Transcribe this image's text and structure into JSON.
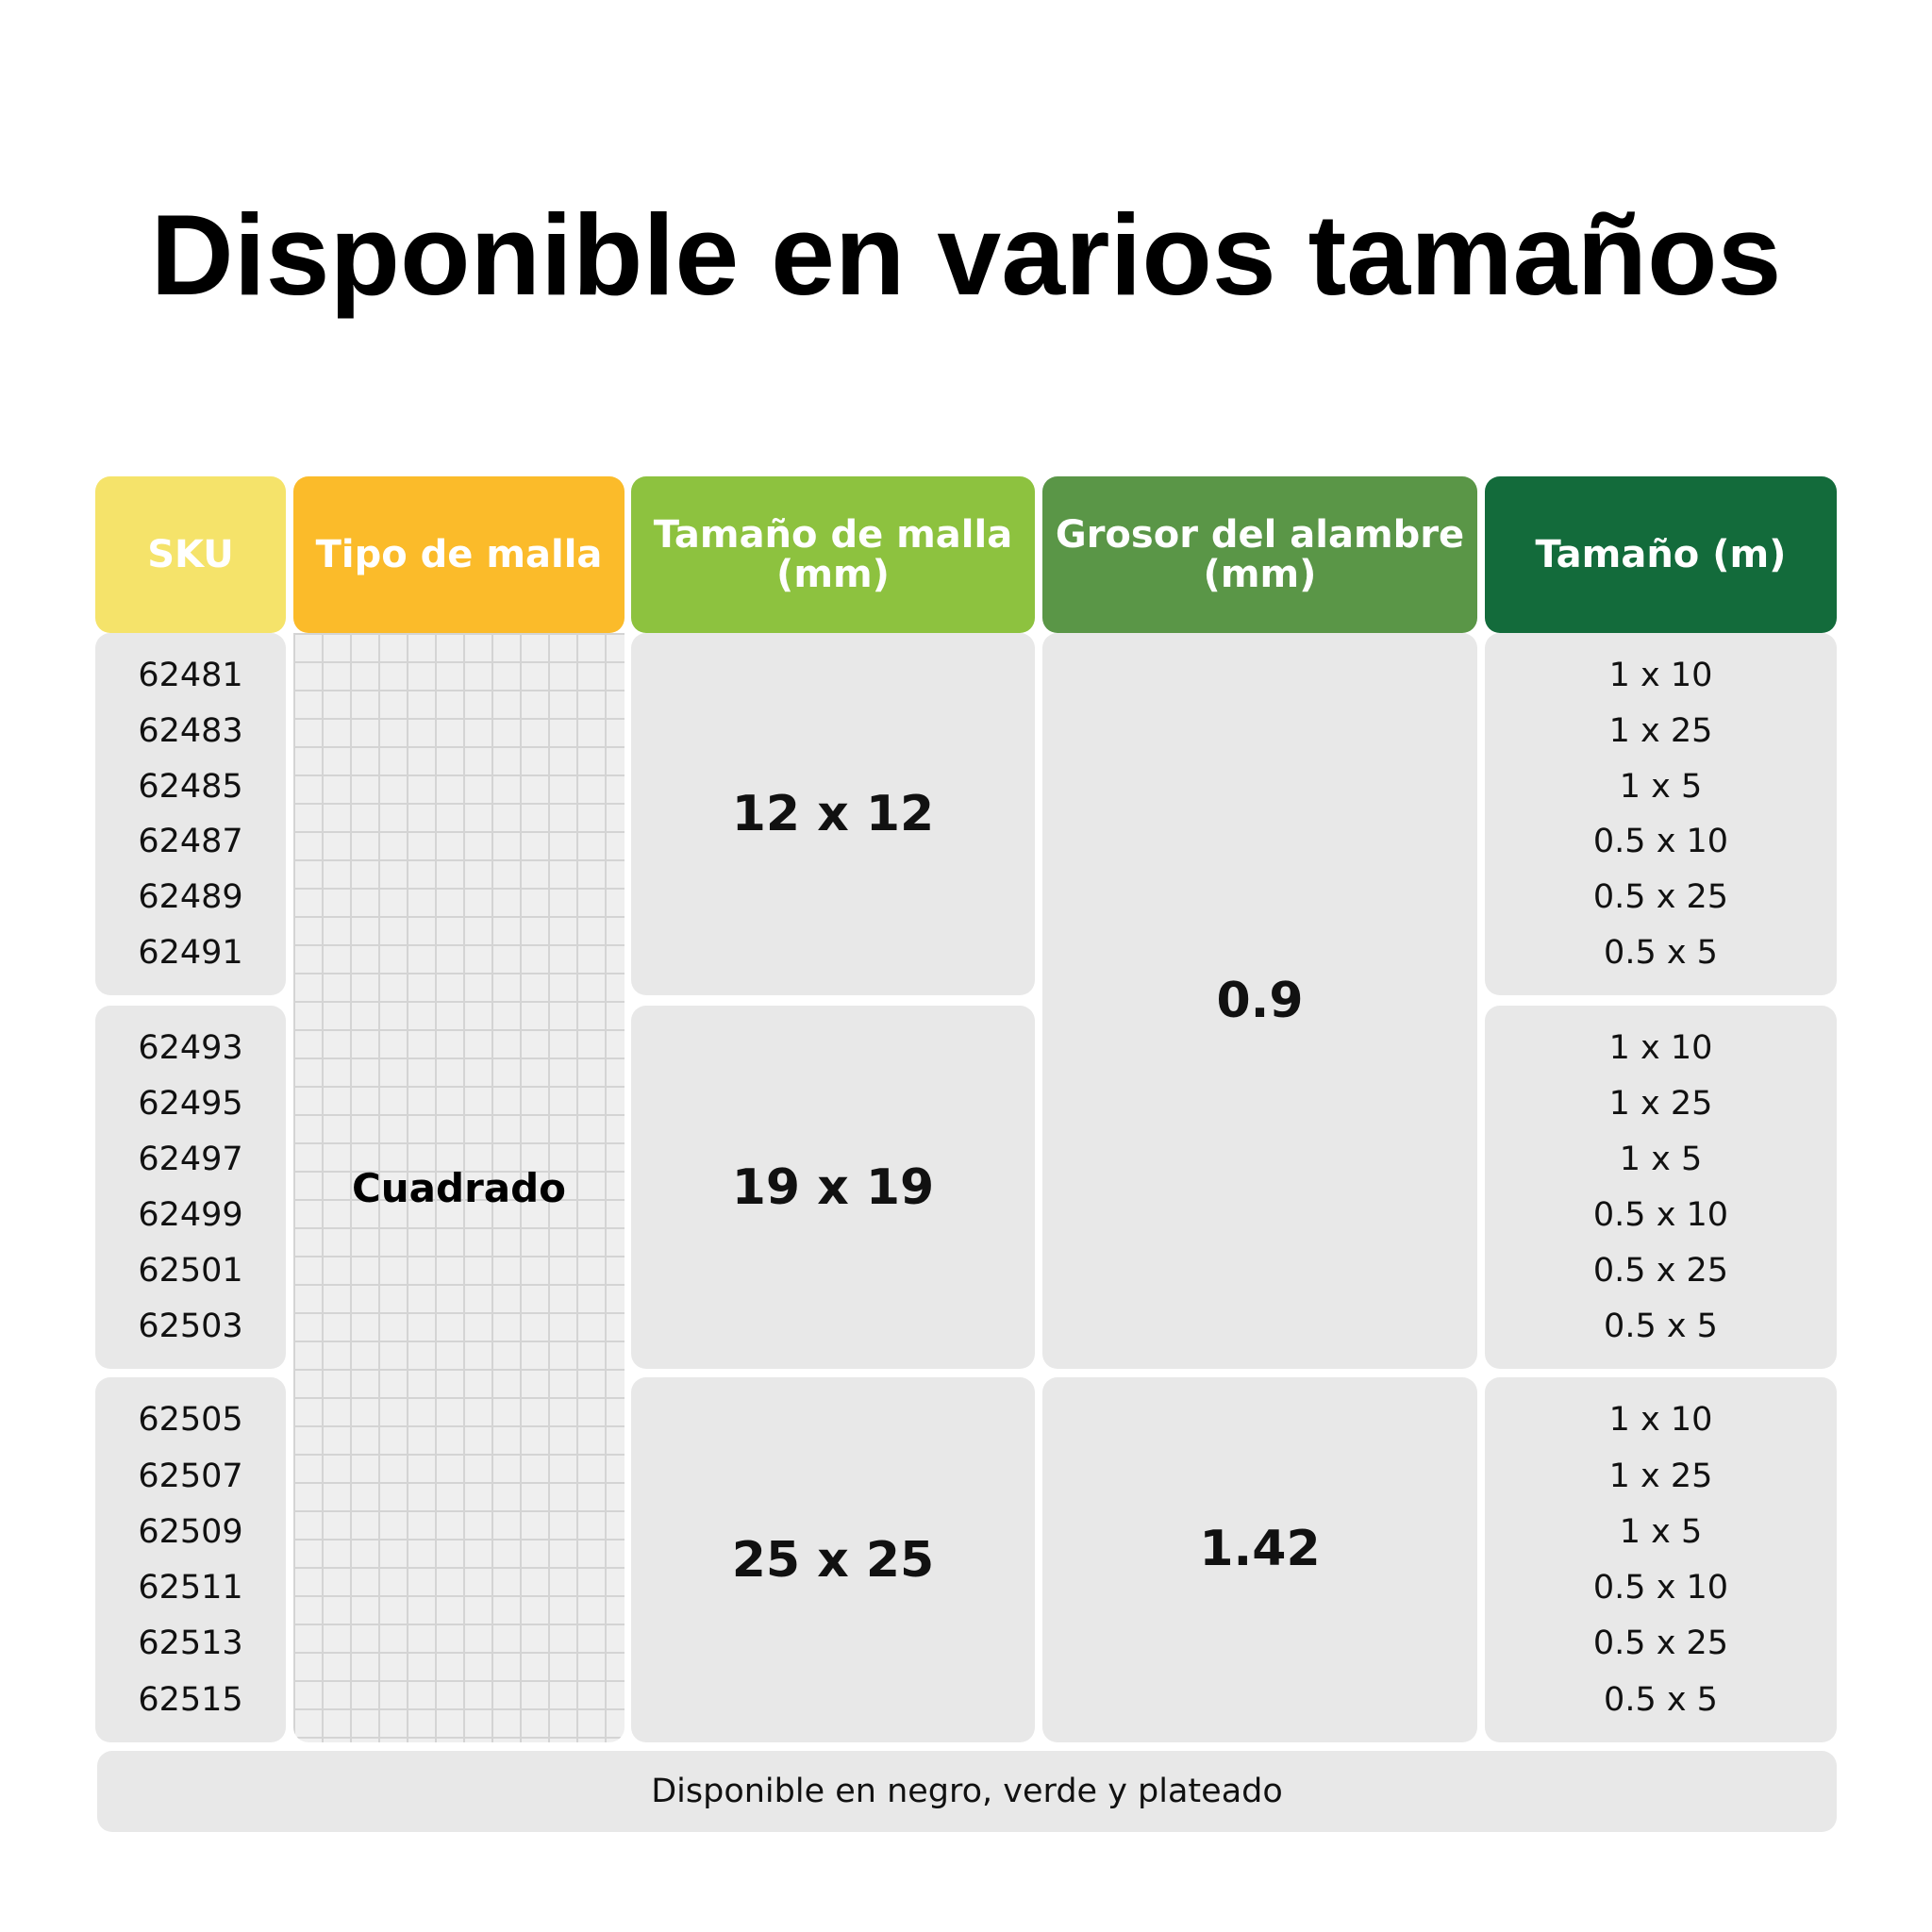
{
  "header": {
    "title": "Disponible en varios tamaños"
  },
  "table": {
    "columns": [
      "SKU",
      "Tipo de malla",
      "Tamaño de malla (mm)",
      "Grosor del alambre (mm)",
      "Tamaño (m)"
    ],
    "mesh_type": "Cuadrado",
    "wire_thickness": [
      "0.9",
      "1.42"
    ],
    "groups": [
      {
        "skus": [
          "62481",
          "62483",
          "62485",
          "62487",
          "62489",
          "62491"
        ],
        "mesh_size": "12 x 12",
        "sizes": [
          "1 x 10",
          "1 x 25",
          "1 x 5",
          "0.5 x 10",
          "0.5 x 25",
          "0.5 x 5"
        ]
      },
      {
        "skus": [
          "62493",
          "62495",
          "62497",
          "62499",
          "62501",
          "62503"
        ],
        "mesh_size": "19 x 19",
        "sizes": [
          "1 x 10",
          "1 x 25",
          "1 x 5",
          "0.5 x 10",
          "0.5 x 25",
          "0.5 x 5"
        ]
      },
      {
        "skus": [
          "62505",
          "62507",
          "62509",
          "62511",
          "62513",
          "62515"
        ],
        "mesh_size": "25 x 25",
        "sizes": [
          "1 x 10",
          "1 x 25",
          "1 x 5",
          "0.5 x 10",
          "0.5 x 25",
          "0.5 x 5"
        ]
      }
    ]
  },
  "footer": {
    "note": "Disponible en negro, verde y plateado"
  }
}
